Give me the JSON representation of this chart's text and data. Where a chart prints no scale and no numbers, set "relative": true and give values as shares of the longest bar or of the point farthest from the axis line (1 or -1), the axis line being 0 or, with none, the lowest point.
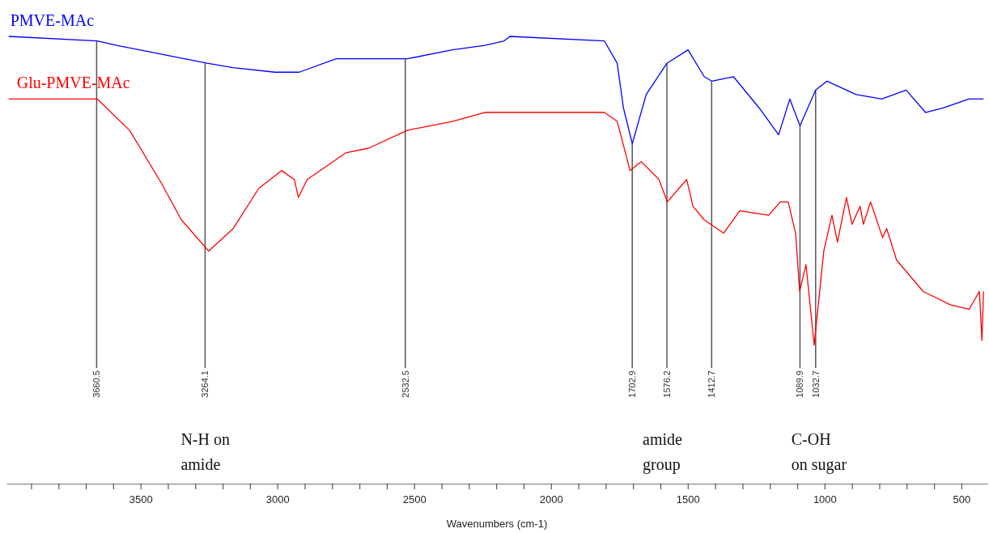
{
  "chart_data": {
    "type": "line",
    "relative": true,
    "xlabel": "Wavenumbers (cm-1)",
    "tick_labels": "x",
    "xlim": [
      3990,
      405
    ],
    "xticks": [
      {
        "value": 3900,
        "label": null
      },
      {
        "value": 3800,
        "label": null
      },
      {
        "value": 3700,
        "label": null
      },
      {
        "value": 3600,
        "label": null
      },
      3500,
      {
        "value": 3400,
        "label": null
      },
      {
        "value": 3300,
        "label": null
      },
      {
        "value": 3200,
        "label": null
      },
      {
        "value": 3100,
        "label": null
      },
      3000,
      {
        "value": 2900,
        "label": null
      },
      {
        "value": 2800,
        "label": null
      },
      {
        "value": 2700,
        "label": null
      },
      {
        "value": 2600,
        "label": null
      },
      2500,
      {
        "value": 2400,
        "label": null
      },
      {
        "value": 2300,
        "label": null
      },
      {
        "value": 2200,
        "label": null
      },
      {
        "value": 2100,
        "label": null
      },
      2000,
      {
        "value": 1900,
        "label": null
      },
      {
        "value": 1800,
        "label": null
      },
      {
        "value": 1700,
        "label": null
      },
      {
        "value": 1600,
        "label": null
      },
      1500,
      {
        "value": 1400,
        "label": null
      },
      {
        "value": 1300,
        "label": null
      },
      {
        "value": 1200,
        "label": null
      },
      {
        "value": 1100,
        "label": null
      },
      1000,
      {
        "value": 900,
        "label": null
      },
      {
        "value": 800,
        "label": null
      },
      {
        "value": 700,
        "label": null
      },
      {
        "value": 600,
        "label": null
      },
      500
    ],
    "series": [
      {
        "name": "PMVE-MAc",
        "color": "#0000ff",
        "x": [
          3982,
          3658,
          3587,
          3257,
          3162,
          3009,
          2920,
          2785,
          2678,
          2525,
          2360,
          2242,
          2171,
          2150,
          1805,
          1758,
          1735,
          1702.9,
          1652,
          1576.2,
          1499,
          1440,
          1412.7,
          1333,
          1239,
          1168,
          1127,
          1089.9,
          1032.7,
          991,
          885,
          791,
          702,
          631,
          566,
          472,
          419
        ],
        "values": [
          1.0,
          0.99,
          0.98,
          0.94,
          0.93,
          0.92,
          0.92,
          0.95,
          0.95,
          0.95,
          0.97,
          0.98,
          0.99,
          1.0,
          0.99,
          0.94,
          0.84,
          0.76,
          0.87,
          0.94,
          0.97,
          0.91,
          0.9,
          0.91,
          0.84,
          0.78,
          0.86,
          0.8,
          0.88,
          0.9,
          0.87,
          0.86,
          0.88,
          0.83,
          0.84,
          0.86,
          0.86
        ]
      },
      {
        "name": "Glu-PMVE-MAc",
        "color": "#ff0000",
        "x": [
          3982,
          3658,
          3540,
          3422,
          3351,
          3251,
          3162,
          3068,
          2985,
          2938,
          2923,
          2891,
          2749,
          2667,
          2525,
          2360,
          2242,
          1805,
          1758,
          1711,
          1670,
          1605,
          1575,
          1504,
          1481,
          1440,
          1369,
          1310,
          1204,
          1162,
          1133,
          1106,
          1091,
          1068,
          1038,
          1003,
          973,
          953,
          920,
          900,
          870,
          858,
          832,
          788,
          773,
          737,
          640,
          540,
          472,
          434,
          425,
          419
        ],
        "values": [
          0.86,
          0.86,
          0.79,
          0.67,
          0.59,
          0.52,
          0.57,
          0.66,
          0.7,
          0.68,
          0.64,
          0.68,
          0.74,
          0.75,
          0.79,
          0.81,
          0.83,
          0.83,
          0.81,
          0.7,
          0.72,
          0.68,
          0.63,
          0.68,
          0.62,
          0.59,
          0.56,
          0.61,
          0.6,
          0.63,
          0.63,
          0.56,
          0.43,
          0.49,
          0.31,
          0.52,
          0.6,
          0.54,
          0.64,
          0.58,
          0.62,
          0.58,
          0.63,
          0.55,
          0.57,
          0.5,
          0.43,
          0.4,
          0.39,
          0.43,
          0.32,
          0.43
        ]
      }
    ],
    "annotations": [
      {
        "text": "3660.5",
        "x": 3660.5,
        "y": 0.99
      },
      {
        "text": "3264.1",
        "x": 3264.1,
        "y": 0.94
      },
      "N-H on\namide",
      {
        "text": "2532.5",
        "x": 2532.5,
        "y": 0.95
      },
      {
        "text": "1702.9",
        "x": 1702.9,
        "y": 0.76
      },
      {
        "text": "1576.2",
        "x": 1576.2,
        "y": 0.94
      },
      "amide\ngroup",
      {
        "text": "1412.7",
        "x": 1412.7,
        "y": 0.9
      },
      {
        "text": "1089.9",
        "x": 1089.9,
        "y": 0.8
      },
      {
        "text": "1032.7",
        "x": 1032.7,
        "y": 0.88
      },
      "C-OH\non sugar"
    ]
  }
}
